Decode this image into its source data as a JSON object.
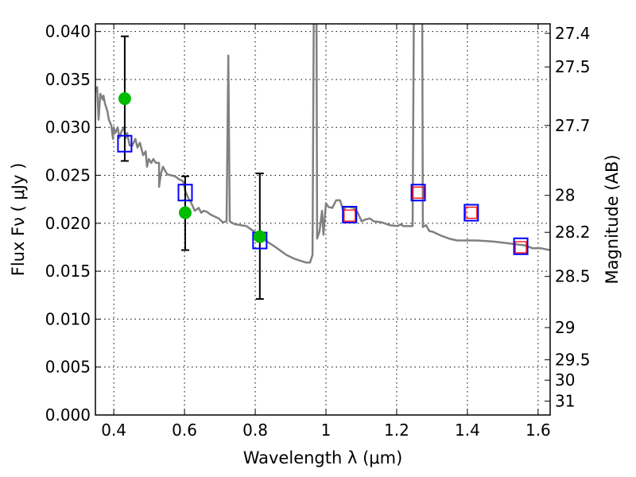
{
  "chart_data": {
    "type": "scatter",
    "xlabel": "Wavelength  λ (μm)",
    "ylabel": "Flux  Fν  ( μJy )",
    "y2label": "Magnitude (AB)",
    "xlim": [
      0.348,
      1.634
    ],
    "ylim": [
      0.0,
      0.0408
    ],
    "grid": true,
    "xticks": [
      0.4,
      0.6,
      0.8,
      1.0,
      1.2,
      1.4,
      1.6
    ],
    "xtick_labels": [
      "0.4",
      "0.6",
      "0.8",
      "1",
      "1.2",
      "1.4",
      "1.6"
    ],
    "yticks": [
      0,
      0.005,
      0.01,
      0.015,
      0.02,
      0.025,
      0.03,
      0.035,
      0.04
    ],
    "ytick_labels": [
      "0.000",
      "0.005",
      "0.010",
      "0.015",
      "0.020",
      "0.025",
      "0.030",
      "0.035",
      "0.040"
    ],
    "y2ticks": [
      27.4,
      27.5,
      27.7,
      28,
      28.2,
      28.5,
      29,
      29.5,
      30,
      31
    ],
    "y2tick_labels": [
      "27.4",
      "27.5",
      "27.7",
      "28",
      "28.2",
      "28.5",
      "29",
      "29.5",
      "30",
      "31"
    ],
    "y2_zeropoint": 23.9,
    "colors": {
      "spectrum": "#808080",
      "observed": "#00bb00",
      "model_blue": "#0000ff",
      "model_red": "#ff0000",
      "errorbar": "#000000"
    },
    "spectrum": {
      "x": [
        0.348,
        0.353,
        0.357,
        0.362,
        0.369,
        0.371,
        0.375,
        0.382,
        0.386,
        0.393,
        0.398,
        0.4,
        0.404,
        0.411,
        0.416,
        0.422,
        0.429,
        0.434,
        0.438,
        0.445,
        0.452,
        0.461,
        0.467,
        0.474,
        0.483,
        0.49,
        0.494,
        0.499,
        0.506,
        0.512,
        0.519,
        0.528,
        0.528,
        0.533,
        0.539,
        0.551,
        0.562,
        0.573,
        0.584,
        0.596,
        0.602,
        0.611,
        0.618,
        0.629,
        0.64,
        0.647,
        0.654,
        0.663,
        0.674,
        0.685,
        0.697,
        0.708,
        0.719,
        0.724,
        0.728,
        0.742,
        0.775,
        0.798,
        0.82,
        0.854,
        0.888,
        0.91,
        0.944,
        0.955,
        0.962,
        0.966,
        0.973,
        0.975,
        0.982,
        0.989,
        0.993,
        1.0,
        1.007,
        1.018,
        1.029,
        1.04,
        1.049,
        1.056,
        1.067,
        1.079,
        1.09,
        1.101,
        1.112,
        1.124,
        1.135,
        1.157,
        1.18,
        1.202,
        1.213,
        1.218,
        1.245,
        1.249,
        1.272,
        1.274,
        1.283,
        1.292,
        1.303,
        1.326,
        1.348,
        1.371,
        1.393,
        1.427,
        1.472,
        1.517,
        1.562,
        1.584,
        1.607,
        1.634
      ],
      "y": [
        0.0337,
        0.0342,
        0.0308,
        0.0335,
        0.0329,
        0.0333,
        0.0325,
        0.0317,
        0.0308,
        0.0302,
        0.0288,
        0.03,
        0.0294,
        0.03,
        0.0289,
        0.0296,
        0.03,
        0.0289,
        0.0294,
        0.0281,
        0.0281,
        0.0288,
        0.0279,
        0.0284,
        0.0271,
        0.0275,
        0.0259,
        0.0267,
        0.0263,
        0.0267,
        0.0263,
        0.0263,
        0.0238,
        0.0251,
        0.0259,
        0.0251,
        0.025,
        0.0249,
        0.0246,
        0.0244,
        0.0234,
        0.0226,
        0.0222,
        0.0213,
        0.0216,
        0.0211,
        0.0213,
        0.0212,
        0.0209,
        0.0207,
        0.0205,
        0.0201,
        0.0202,
        0.0375,
        0.0202,
        0.0199,
        0.0197,
        0.0191,
        0.0184,
        0.0176,
        0.0167,
        0.0163,
        0.0159,
        0.0159,
        0.0167,
        0.045,
        0.045,
        0.0184,
        0.0192,
        0.0213,
        0.0188,
        0.0221,
        0.0217,
        0.0216,
        0.0224,
        0.0224,
        0.0213,
        0.0217,
        0.0217,
        0.0216,
        0.0211,
        0.0202,
        0.0204,
        0.0205,
        0.0202,
        0.0201,
        0.0198,
        0.0197,
        0.0199,
        0.0197,
        0.0197,
        0.045,
        0.045,
        0.0196,
        0.0198,
        0.0192,
        0.0191,
        0.0187,
        0.0184,
        0.0182,
        0.0182,
        0.0182,
        0.0181,
        0.0179,
        0.0177,
        0.0174,
        0.0174,
        0.0172
      ]
    },
    "observed": [
      {
        "x": 0.431,
        "y": 0.033,
        "ylo": 0.0265,
        "yhi": 0.0395
      },
      {
        "x": 0.602,
        "y": 0.0211,
        "ylo": 0.0172,
        "yhi": 0.0249
      },
      {
        "x": 0.813,
        "y": 0.0186,
        "ylo": 0.0121,
        "yhi": 0.0252
      }
    ],
    "model_blue": [
      {
        "x": 0.431,
        "y": 0.0283
      },
      {
        "x": 0.602,
        "y": 0.0232
      },
      {
        "x": 0.813,
        "y": 0.0182
      },
      {
        "x": 1.067,
        "y": 0.0209
      },
      {
        "x": 1.261,
        "y": 0.0232
      },
      {
        "x": 1.411,
        "y": 0.0211
      },
      {
        "x": 1.551,
        "y": 0.0176
      }
    ],
    "model_red": [
      {
        "x": 1.067,
        "y": 0.0208
      },
      {
        "x": 1.261,
        "y": 0.0232
      },
      {
        "x": 1.411,
        "y": 0.0211
      },
      {
        "x": 1.551,
        "y": 0.0175
      }
    ]
  }
}
